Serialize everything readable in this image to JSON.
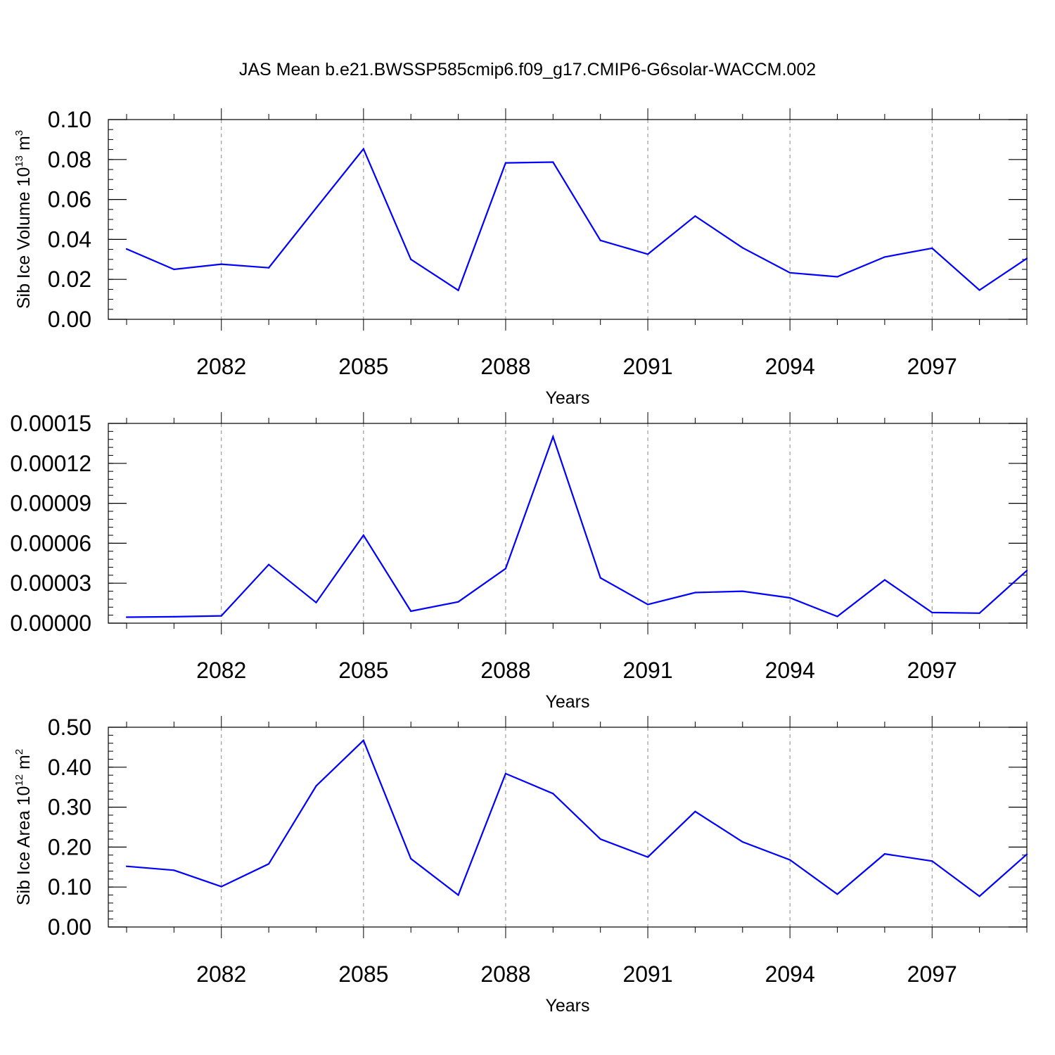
{
  "figure_title": "JAS Mean b.e21.BWSSP585cmip6.f09_g17.CMIP6-G6solar-WACCM.002",
  "colors": {
    "line": "#0000ff",
    "axis": "#000000",
    "grid": "#888888"
  },
  "chart_data": [
    {
      "type": "line",
      "title": "",
      "xlabel": "Years",
      "ylabel": "Sib Ice Volume 10",
      "ylabel_sup": "13",
      "ylabel_unit": "m",
      "ylabel_unit_sup": "3",
      "xlim": [
        2080,
        2099
      ],
      "ylim": [
        0,
        0.1
      ],
      "x_ticks": [
        2082,
        2085,
        2088,
        2091,
        2094,
        2097
      ],
      "x_tick_labels": [
        "2082",
        "2085",
        "2088",
        "2091",
        "2094",
        "2097"
      ],
      "y_ticks": [
        0,
        0.02,
        0.04,
        0.06,
        0.08,
        0.1
      ],
      "y_tick_labels": [
        "0.00",
        "0.02",
        "0.04",
        "0.06",
        "0.08",
        "0.10"
      ],
      "y_minor_step": 0.005,
      "grid": "vertical dashed at major x ticks",
      "x": [
        2080,
        2081,
        2082,
        2083,
        2084,
        2085,
        2086,
        2087,
        2088,
        2089,
        2090,
        2091,
        2092,
        2093,
        2094,
        2095,
        2096,
        2097,
        2098,
        2099
      ],
      "values": [
        0.0352,
        0.025,
        0.0276,
        0.0258,
        0.0557,
        0.0853,
        0.03,
        0.0145,
        0.0783,
        0.0787,
        0.0395,
        0.0326,
        0.0517,
        0.0358,
        0.0233,
        0.0213,
        0.0312,
        0.0356,
        0.0146,
        0.0305
      ]
    },
    {
      "type": "line",
      "title": "",
      "xlabel": "Years",
      "ylabel": "",
      "ylabel_sup": "",
      "ylabel_unit": "",
      "ylabel_unit_sup": "",
      "xlim": [
        2080,
        2099
      ],
      "ylim": [
        0,
        0.00015
      ],
      "x_ticks": [
        2082,
        2085,
        2088,
        2091,
        2094,
        2097
      ],
      "x_tick_labels": [
        "2082",
        "2085",
        "2088",
        "2091",
        "2094",
        "2097"
      ],
      "y_ticks": [
        0,
        3e-05,
        6e-05,
        9e-05,
        0.00012,
        0.00015
      ],
      "y_tick_labels": [
        "0.00000",
        "0.00003",
        "0.00006",
        "0.00009",
        "0.00012",
        "0.00015"
      ],
      "y_minor_step": 6e-06,
      "grid": "vertical dashed at major x ticks",
      "x": [
        2080,
        2081,
        2082,
        2083,
        2084,
        2085,
        2086,
        2087,
        2088,
        2089,
        2090,
        2091,
        2092,
        2093,
        2094,
        2095,
        2096,
        2097,
        2098,
        2099
      ],
      "values": [
        4.5e-06,
        4.8e-06,
        5.5e-06,
        4.4e-05,
        1.55e-05,
        6.6e-05,
        9e-06,
        1.6e-05,
        4.1e-05,
        0.00014,
        3.4e-05,
        1.4e-05,
        2.3e-05,
        2.4e-05,
        1.9e-05,
        5e-06,
        3.25e-05,
        8e-06,
        7.5e-06,
        3.95e-05
      ]
    },
    {
      "type": "line",
      "title": "",
      "xlabel": "Years",
      "ylabel": "Sib Ice Area 10",
      "ylabel_sup": "12",
      "ylabel_unit": "m",
      "ylabel_unit_sup": "2",
      "xlim": [
        2080,
        2099
      ],
      "ylim": [
        0,
        0.5
      ],
      "x_ticks": [
        2082,
        2085,
        2088,
        2091,
        2094,
        2097
      ],
      "x_tick_labels": [
        "2082",
        "2085",
        "2088",
        "2091",
        "2094",
        "2097"
      ],
      "y_ticks": [
        0,
        0.1,
        0.2,
        0.3,
        0.4,
        0.5
      ],
      "y_tick_labels": [
        "0.00",
        "0.10",
        "0.20",
        "0.30",
        "0.40",
        "0.50"
      ],
      "y_minor_step": 0.02,
      "grid": "vertical dashed at major x ticks",
      "x": [
        2080,
        2081,
        2082,
        2083,
        2084,
        2085,
        2086,
        2087,
        2088,
        2089,
        2090,
        2091,
        2092,
        2093,
        2094,
        2095,
        2096,
        2097,
        2098,
        2099
      ],
      "values": [
        0.152,
        0.142,
        0.101,
        0.158,
        0.353,
        0.467,
        0.171,
        0.08,
        0.384,
        0.334,
        0.22,
        0.175,
        0.289,
        0.213,
        0.168,
        0.082,
        0.183,
        0.165,
        0.077,
        0.182
      ]
    }
  ]
}
